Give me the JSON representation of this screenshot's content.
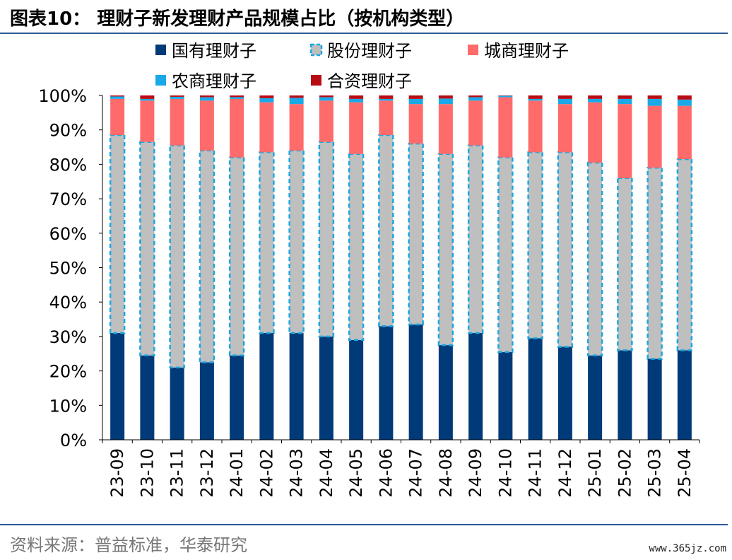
{
  "header": {
    "title": "图表10：  理财子新发理财产品规模占比（按机构类型）"
  },
  "footer": {
    "source": "资料来源：普益标准，华泰研究",
    "watermark": "www.365jz.com"
  },
  "colors": {
    "国有理财子": "#003a78",
    "股份理财子": "#bfbfbf",
    "股份理财子_border": "#1aa7e0",
    "城商理财子": "#ff6b6b",
    "农商理财子": "#19a9e8",
    "合资理财子": "#b80c14"
  },
  "chart_data": {
    "type": "bar",
    "stacked": true,
    "categories": [
      "23-09",
      "23-10",
      "23-11",
      "23-12",
      "24-01",
      "24-02",
      "24-03",
      "24-04",
      "24-05",
      "24-06",
      "24-07",
      "24-08",
      "24-09",
      "24-10",
      "24-11",
      "24-12",
      "25-01",
      "25-02",
      "25-03",
      "25-04"
    ],
    "ylim": [
      0,
      100
    ],
    "yticks": [
      "0%",
      "10%",
      "20%",
      "30%",
      "40%",
      "50%",
      "60%",
      "70%",
      "80%",
      "90%",
      "100%"
    ],
    "legend_position": "top",
    "series": [
      {
        "name": "国有理财子",
        "values": [
          31,
          24.5,
          21,
          22.5,
          24.5,
          31,
          31,
          30,
          29,
          33,
          33.5,
          27.5,
          31,
          25.5,
          29.5,
          27,
          24.5,
          26,
          23.5,
          26
        ]
      },
      {
        "name": "股份理财子",
        "values": [
          57.5,
          62,
          64.5,
          61.5,
          57.5,
          52.5,
          53,
          56.5,
          54,
          55.5,
          52.5,
          55.5,
          54.5,
          56.5,
          54,
          56.5,
          56,
          50,
          55.5,
          55.5
        ]
      },
      {
        "name": "城商理财子",
        "values": [
          10.5,
          12,
          13.5,
          14.5,
          17,
          14.5,
          13.5,
          12,
          15,
          10,
          11.5,
          14.5,
          13,
          17.5,
          15,
          14,
          17.5,
          21.5,
          18,
          15.5
        ]
      },
      {
        "name": "农商理财子",
        "values": [
          0.7,
          0.5,
          0.6,
          1.0,
          0.5,
          1.2,
          1.8,
          1.0,
          1.0,
          0.5,
          1.5,
          1.6,
          1.0,
          0.4,
          0.5,
          1.5,
          1.0,
          1.5,
          2.0,
          1.8
        ]
      },
      {
        "name": "合资理财子",
        "values": [
          0.3,
          1.0,
          0.4,
          0.5,
          0.5,
          0.8,
          0.7,
          0.5,
          1.0,
          1.0,
          1.0,
          0.9,
          0.5,
          0.1,
          1.0,
          1.0,
          1.0,
          1.0,
          1.0,
          1.2
        ]
      }
    ]
  }
}
